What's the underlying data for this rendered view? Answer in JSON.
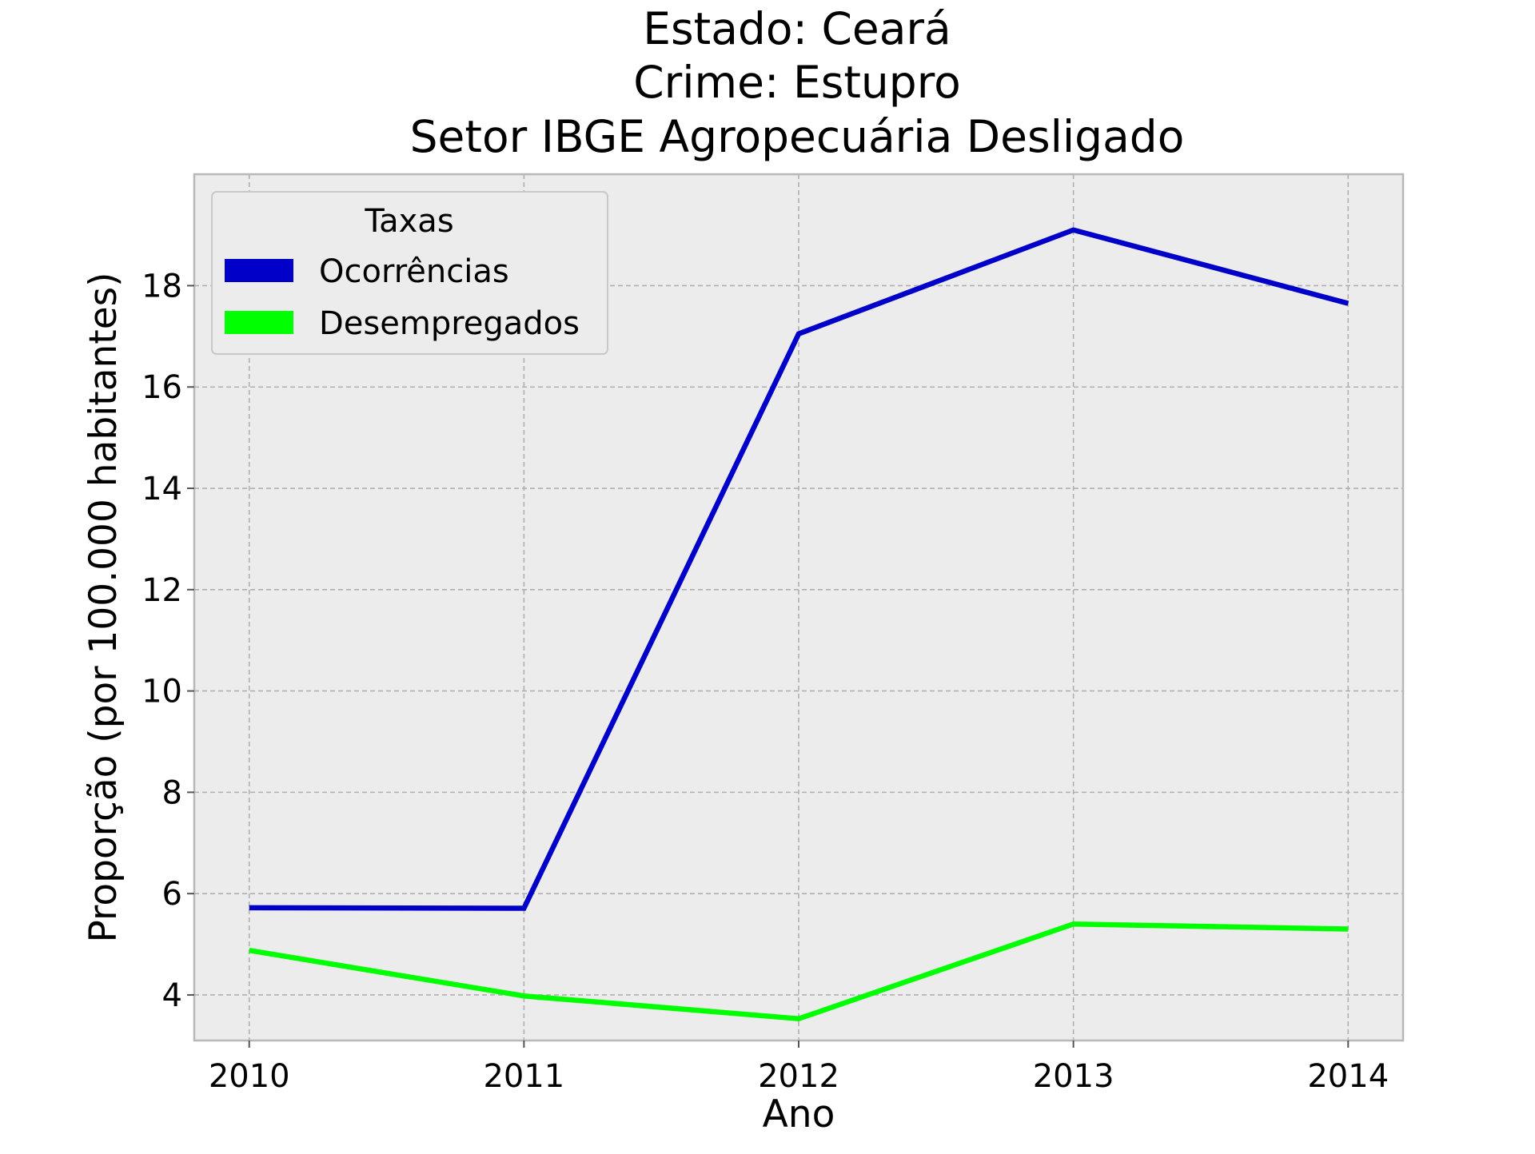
{
  "chart_data": {
    "type": "line",
    "title_lines": [
      "Estado: Ceará",
      "Crime: Estupro",
      "Setor IBGE  Agropecuária   Desligado"
    ],
    "xlabel": "Ano",
    "ylabel": "Proporção (por 100.000 habitantes)",
    "categories": [
      "2010",
      "2011",
      "2012",
      "2013",
      "2014"
    ],
    "x": [
      2010,
      2011,
      2012,
      2013,
      2014
    ],
    "xlim": [
      2009.8,
      2014.2
    ],
    "ylim": [
      3.1,
      20.2
    ],
    "yticks": [
      4,
      6,
      8,
      10,
      12,
      14,
      16,
      18
    ],
    "grid": true,
    "legend": {
      "title": "Taxas",
      "placement": "upper-left"
    },
    "series": [
      {
        "name": "Ocorrências",
        "color": "#0000c8",
        "values": [
          5.72,
          5.71,
          17.05,
          19.1,
          17.65
        ]
      },
      {
        "name": "Desempregados",
        "color": "#00ff00",
        "values": [
          4.88,
          3.98,
          3.53,
          5.4,
          5.3
        ]
      }
    ],
    "style": {
      "plot_background": "#ececec",
      "axes_edge": "#b8b8b8"
    }
  }
}
